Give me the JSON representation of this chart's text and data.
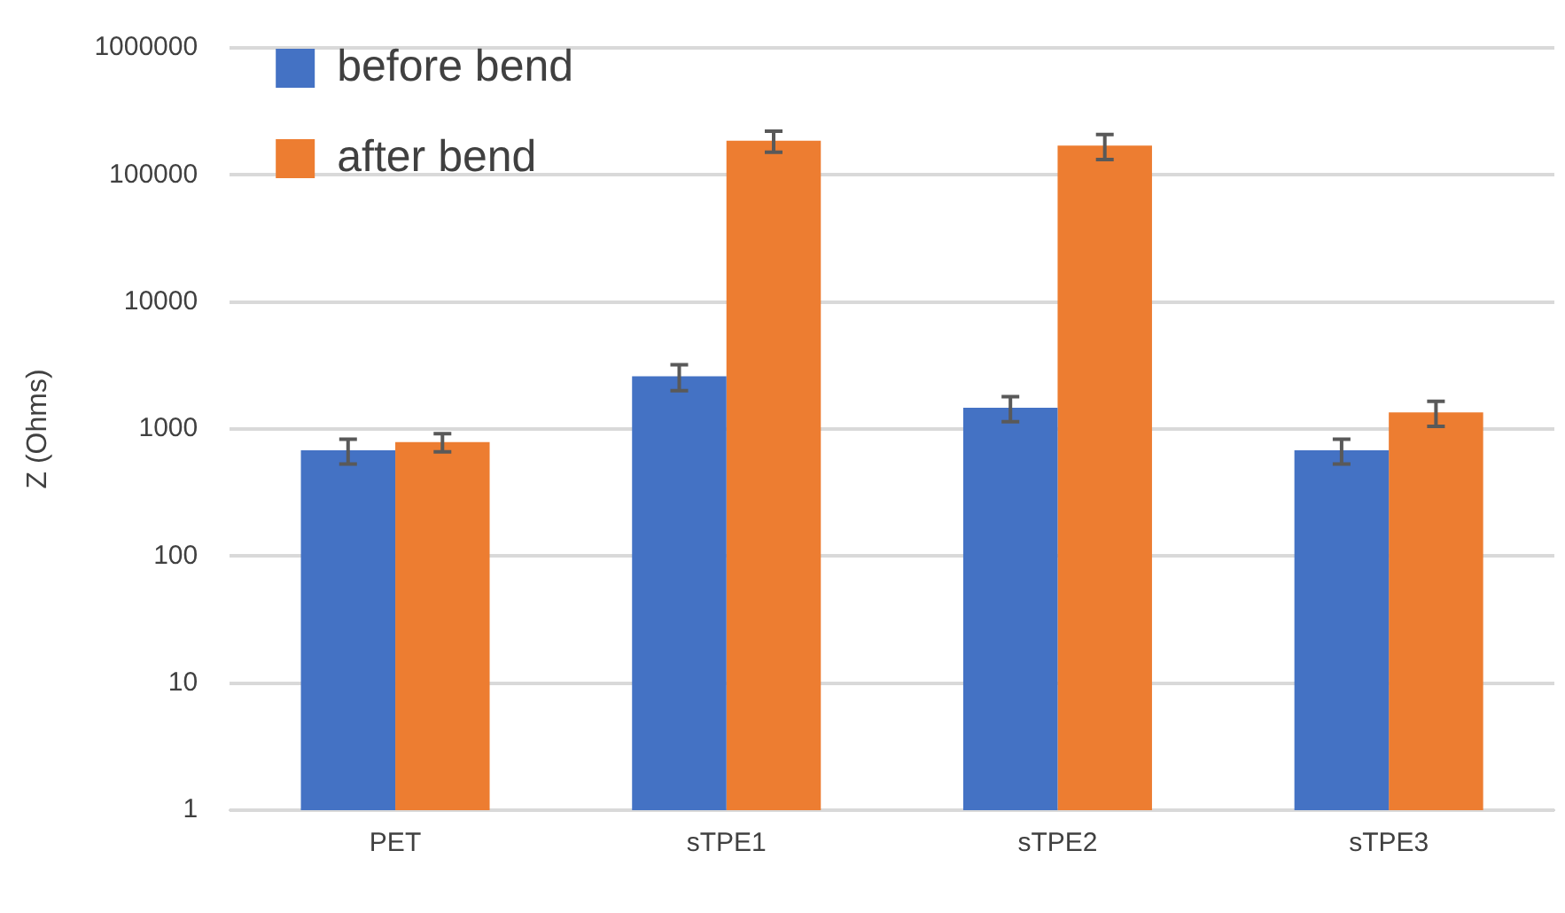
{
  "chart_data": {
    "type": "bar",
    "ylabel": "Z (Ohms)",
    "categories": [
      "PET",
      "sTPE1",
      "sTPE2",
      "sTPE3"
    ],
    "series": [
      {
        "name": "before bend",
        "color": "#4472c4",
        "values": [
          680,
          2600,
          1470,
          680
        ],
        "errors": [
          150,
          600,
          330,
          150
        ]
      },
      {
        "name": "after bend",
        "color": "#ed7d31",
        "values": [
          790,
          186000,
          170000,
          1350
        ],
        "errors": [
          130,
          35000,
          38000,
          300
        ]
      }
    ],
    "log": "y",
    "ylim": [
      1,
      1000000
    ],
    "yticks": [
      1,
      10,
      100,
      1000,
      10000,
      100000,
      1000000
    ],
    "grid": "y",
    "legend": "top left"
  }
}
